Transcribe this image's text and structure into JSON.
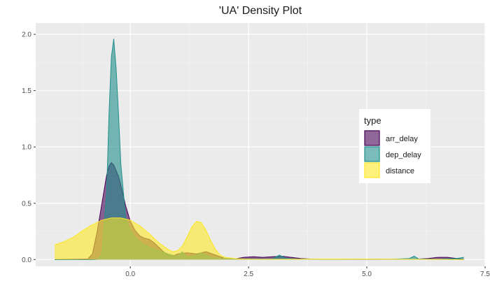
{
  "chart_data": {
    "type": "area",
    "title": "'UA' Density Plot",
    "xlabel": "",
    "ylabel": "",
    "xlim": [
      -2.0,
      7.5
    ],
    "ylim": [
      -0.06,
      2.1
    ],
    "x_ticks": [
      0.0,
      2.5,
      5.0,
      7.5
    ],
    "x_tick_labels": [
      "0.0",
      "2.5",
      "5.0",
      "7.5"
    ],
    "y_ticks": [
      0.0,
      0.5,
      1.0,
      1.5,
      2.0
    ],
    "y_tick_labels": [
      "0.0",
      "0.5",
      "1.0",
      "1.5",
      "2.0"
    ],
    "grid": true,
    "legend": {
      "title": "type",
      "position": "right"
    },
    "series": [
      {
        "name": "arr_delay",
        "fill": "#440154",
        "stroke": "#440154",
        "x": [
          -1.6,
          -0.9,
          -0.8,
          -0.7,
          -0.6,
          -0.5,
          -0.45,
          -0.4,
          -0.35,
          -0.3,
          -0.25,
          -0.2,
          -0.1,
          0.0,
          0.1,
          0.2,
          0.3,
          0.4,
          0.5,
          0.6,
          0.7,
          0.8,
          0.9,
          1.0,
          1.2,
          1.4,
          1.6,
          1.8,
          2.0,
          2.2,
          2.4,
          2.6,
          2.8,
          3.0,
          3.2,
          3.4,
          3.6,
          3.8,
          4.0,
          4.5,
          5.0,
          5.5,
          6.0,
          6.3,
          6.5,
          6.7,
          6.9,
          7.05
        ],
        "y": [
          0.0,
          0.005,
          0.05,
          0.25,
          0.5,
          0.75,
          0.83,
          0.86,
          0.84,
          0.79,
          0.74,
          0.66,
          0.48,
          0.34,
          0.26,
          0.21,
          0.19,
          0.18,
          0.15,
          0.11,
          0.07,
          0.04,
          0.03,
          0.05,
          0.06,
          0.05,
          0.07,
          0.04,
          0.01,
          0.005,
          0.02,
          0.025,
          0.02,
          0.025,
          0.03,
          0.02,
          0.01,
          0.005,
          0.003,
          0.003,
          0.003,
          0.003,
          0.003,
          0.01,
          0.02,
          0.02,
          0.01,
          0.0
        ]
      },
      {
        "name": "dep_delay",
        "fill": "#21908C",
        "stroke": "#21908C",
        "x": [
          -1.6,
          -0.8,
          -0.7,
          -0.6,
          -0.5,
          -0.45,
          -0.4,
          -0.35,
          -0.3,
          -0.25,
          -0.2,
          -0.1,
          0.0,
          0.1,
          0.2,
          0.3,
          0.4,
          0.6,
          0.8,
          1.0,
          1.1,
          1.2,
          1.4,
          1.5,
          1.6,
          1.7,
          2.0,
          2.5,
          3.0,
          3.15,
          3.3,
          3.5,
          4.0,
          4.5,
          5.0,
          5.5,
          5.9,
          6.0,
          6.1,
          6.5,
          6.9,
          7.05
        ],
        "y": [
          0.0,
          0.0,
          0.002,
          0.05,
          0.6,
          1.3,
          1.8,
          1.96,
          1.7,
          1.3,
          0.85,
          0.38,
          0.26,
          0.2,
          0.16,
          0.13,
          0.11,
          0.08,
          0.05,
          0.03,
          0.07,
          0.02,
          0.04,
          0.06,
          0.04,
          0.02,
          0.01,
          0.005,
          0.005,
          0.04,
          0.01,
          0.005,
          0.003,
          0.003,
          0.005,
          0.003,
          0.01,
          0.03,
          0.005,
          0.003,
          0.01,
          0.02
        ]
      },
      {
        "name": "distance",
        "fill": "#FDE725",
        "stroke": "#FDE725",
        "x": [
          -1.6,
          -1.4,
          -1.2,
          -1.0,
          -0.8,
          -0.6,
          -0.4,
          -0.2,
          0.0,
          0.2,
          0.4,
          0.6,
          0.8,
          0.9,
          1.0,
          1.1,
          1.2,
          1.3,
          1.4,
          1.5,
          1.6,
          1.7,
          1.8,
          1.9,
          2.0,
          2.2,
          2.4,
          2.6,
          3.0,
          4.0,
          5.0,
          6.0,
          7.05
        ],
        "y": [
          0.13,
          0.16,
          0.2,
          0.26,
          0.31,
          0.35,
          0.37,
          0.37,
          0.35,
          0.3,
          0.23,
          0.15,
          0.09,
          0.07,
          0.08,
          0.12,
          0.2,
          0.29,
          0.34,
          0.33,
          0.26,
          0.17,
          0.09,
          0.04,
          0.02,
          0.01,
          0.005,
          0.003,
          0.003,
          0.005,
          0.005,
          0.003,
          0.0
        ]
      }
    ]
  }
}
